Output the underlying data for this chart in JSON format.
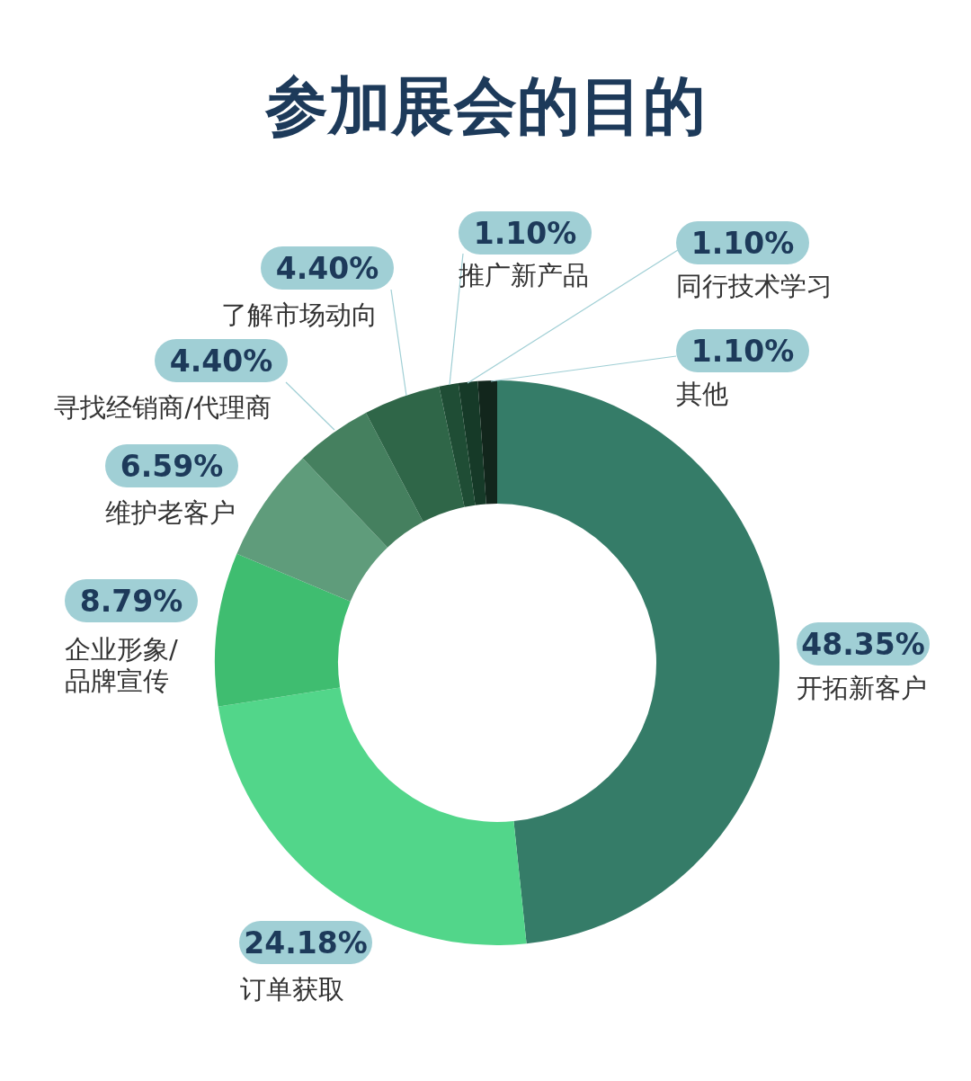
{
  "chart_data": {
    "type": "donut",
    "title": "参加展会的目的",
    "categories": [
      "开拓新客户",
      "订单获取",
      "企业形象/品牌宣传",
      "维护老客户",
      "寻找经销商/代理商",
      "了解市场动向",
      "推广新产品",
      "同行技术学习",
      "其他"
    ],
    "values": [
      48.35,
      24.18,
      8.79,
      6.59,
      4.4,
      4.4,
      1.1,
      1.1,
      1.1
    ],
    "value_labels": [
      "48.35%",
      "24.18%",
      "8.79%",
      "6.59%",
      "4.40%",
      "4.40%",
      "1.10%",
      "1.10%",
      "1.10%"
    ],
    "colors": [
      "#357c68",
      "#52d68a",
      "#3fbd70",
      "#5f9c7b",
      "#45805f",
      "#2f6648",
      "#1f4d35",
      "#163a28",
      "#12261c"
    ]
  }
}
